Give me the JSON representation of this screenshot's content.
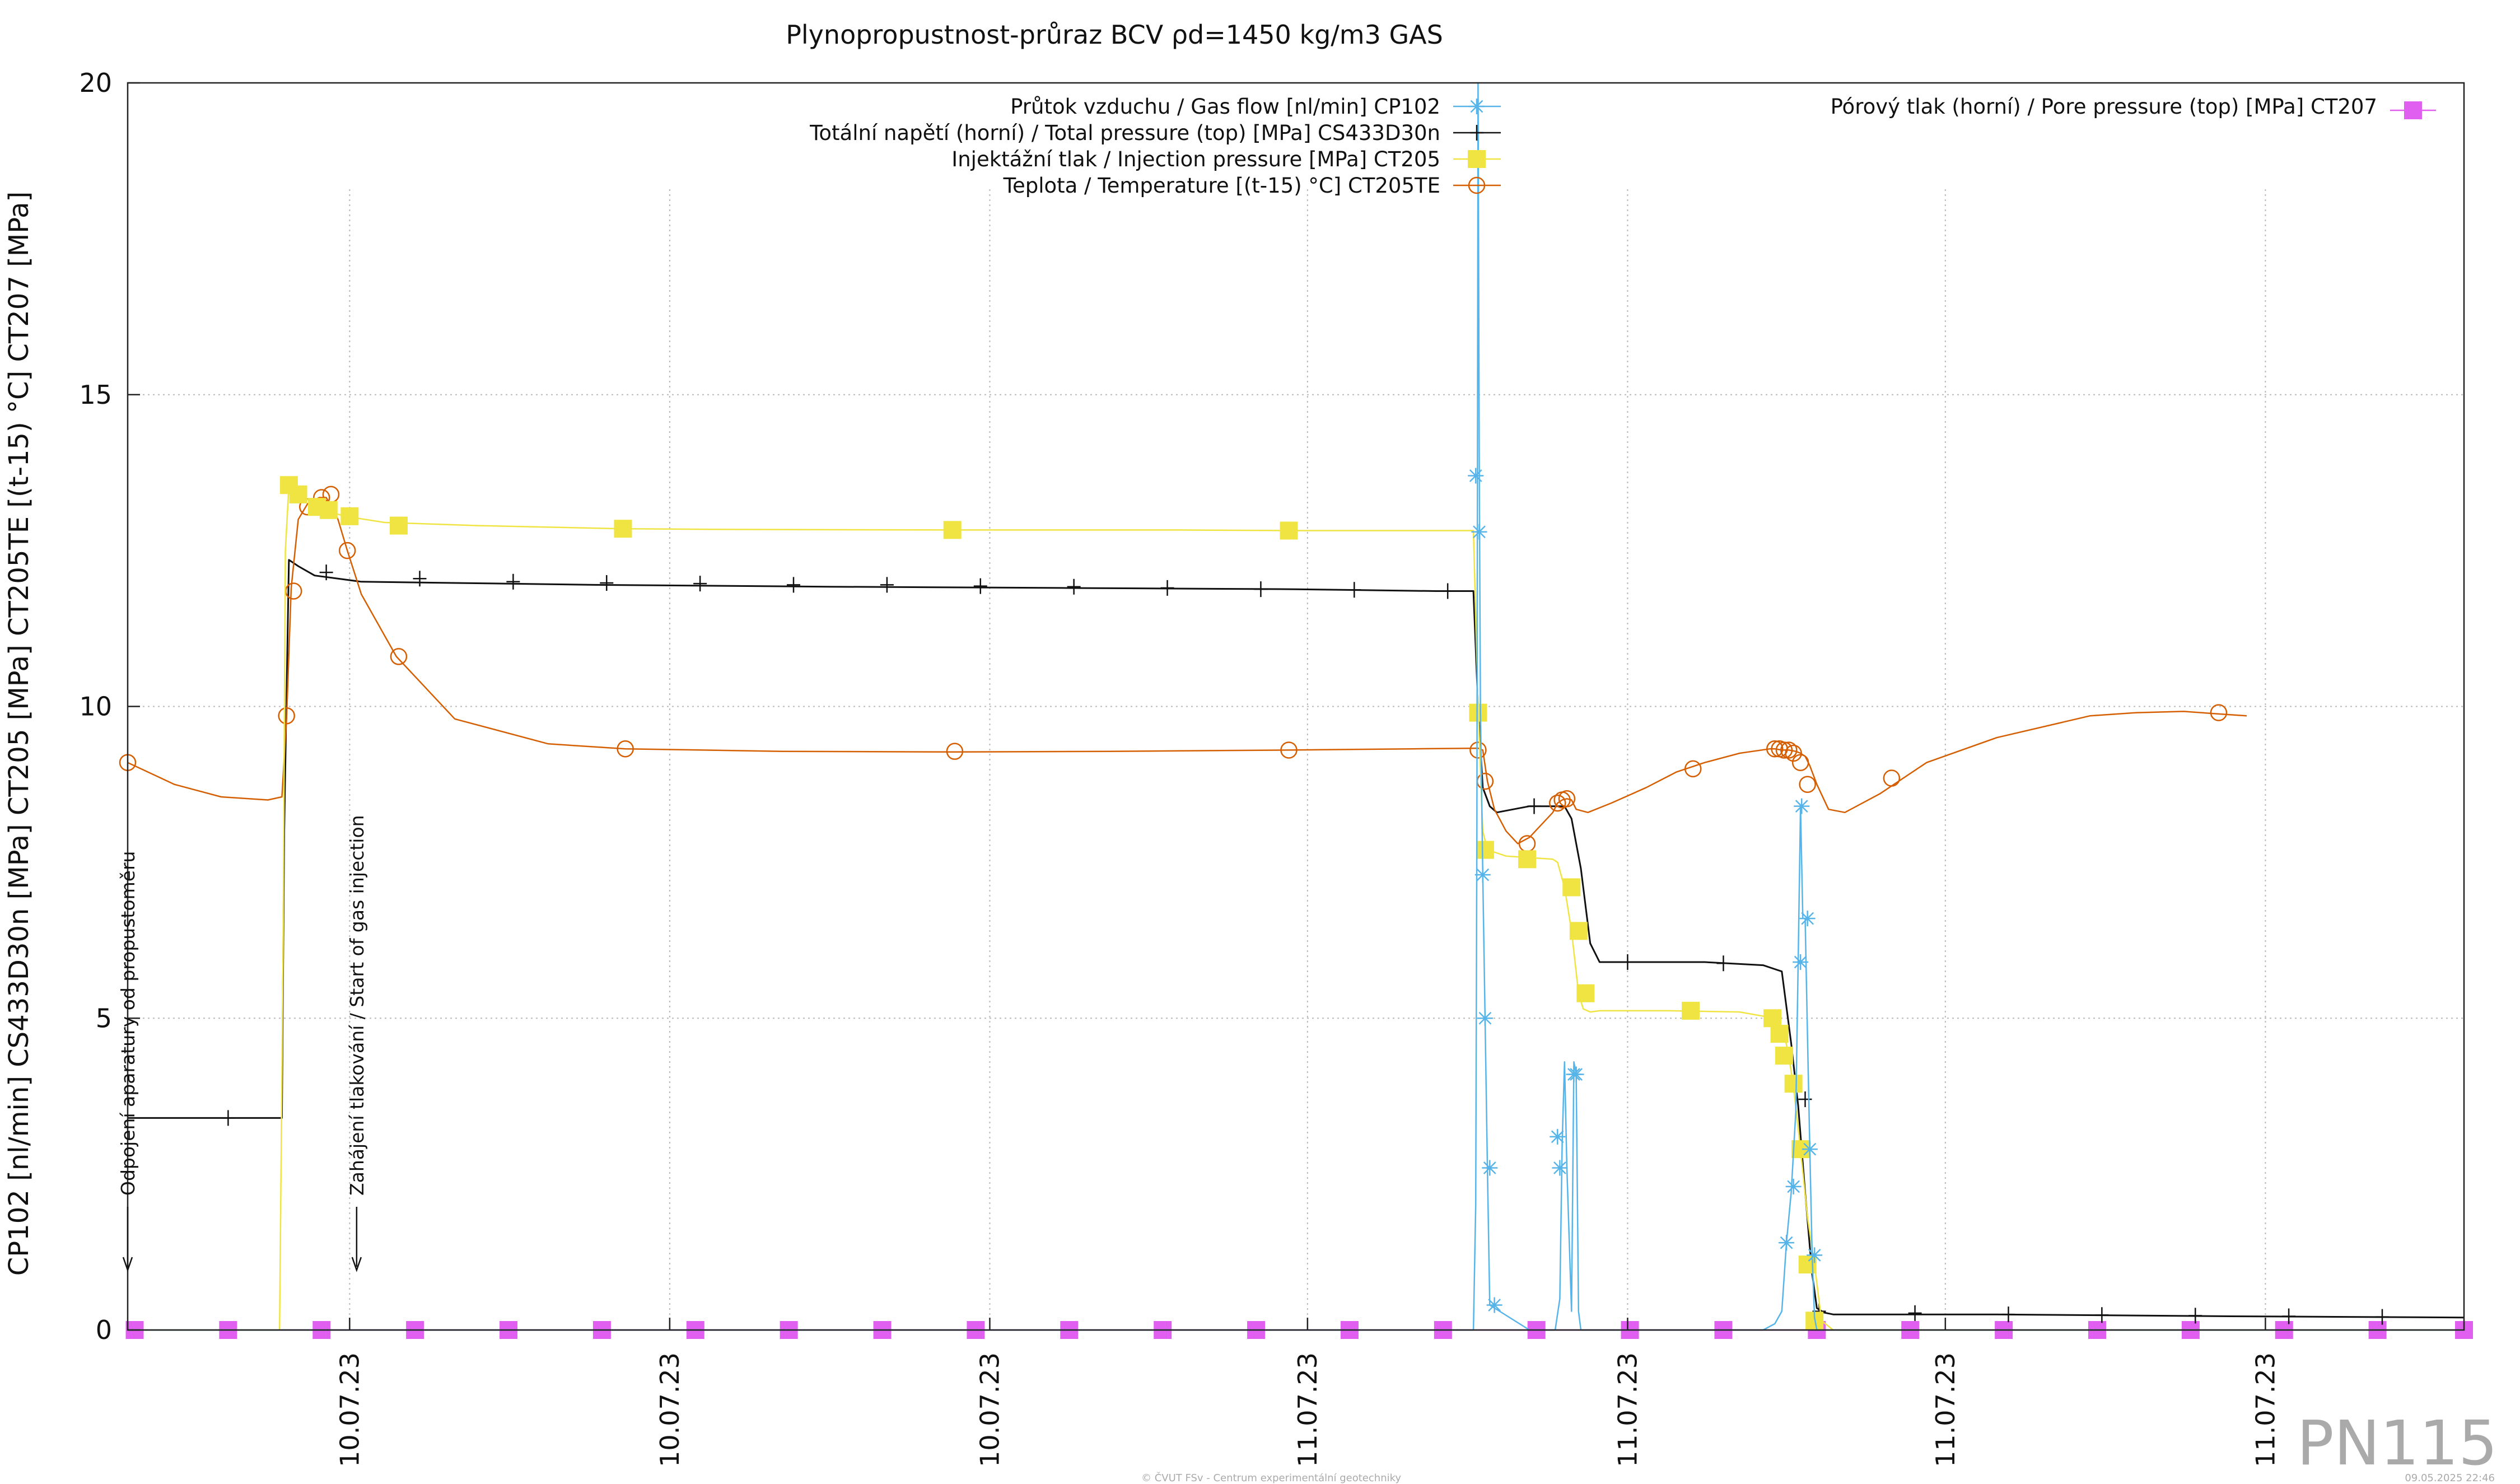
{
  "chart_data": {
    "type": "line",
    "title": "Plynopropustnost-průraz BCV ρd=1450 kg/m3 GAS",
    "ylabel": "CP102 [nl/min] CS433D30n [MPa] CT205 [MPa] CT205TE [(t-15) °C] CT207 [MPa]",
    "ylim": [
      0,
      20
    ],
    "xlim": [
      0,
      100
    ],
    "yticks": [
      "0",
      "5",
      "10",
      "15",
      "20"
    ],
    "xticks": [
      {
        "x": 9.5,
        "label": "10.07.23"
      },
      {
        "x": 23.2,
        "label": "10.07.23"
      },
      {
        "x": 36.9,
        "label": "10.07.23"
      },
      {
        "x": 50.5,
        "label": "11.07.23"
      },
      {
        "x": 64.2,
        "label": "11.07.23"
      },
      {
        "x": 77.8,
        "label": "11.07.23"
      },
      {
        "x": 91.5,
        "label": "11.07.23"
      }
    ],
    "grid": true,
    "series": [
      {
        "name": "Průtok vzduchu / Gas flow [nl/min] CP102",
        "color": "#56b4e9",
        "marker": "star",
        "x": [
          0,
          57.6,
          57.7,
          57.75,
          57.8,
          57.85,
          57.9,
          58.0,
          58.1,
          58.2,
          58.3,
          60.0,
          61.1,
          61.3,
          61.4,
          61.5,
          61.6,
          61.8,
          61.9,
          62.0,
          62.1,
          62.2,
          62.3,
          62.4,
          62.5,
          70.0,
          70.5,
          70.8,
          71.0,
          71.2,
          71.4,
          71.5,
          71.6,
          71.7,
          71.8,
          71.9,
          72.0,
          72.1,
          72.2,
          72.3,
          72.4,
          72.5,
          100
        ],
        "y": [
          0,
          0,
          2.0,
          8.0,
          20.0,
          14.0,
          10.0,
          7.3,
          5.0,
          2.6,
          0.4,
          0,
          0,
          0.5,
          3.0,
          4.3,
          2.6,
          0.3,
          4.3,
          4.1,
          0.3,
          0,
          0,
          0,
          0,
          0,
          0.1,
          0.3,
          1.4,
          2.2,
          3.5,
          5.9,
          8.4,
          6.6,
          6.6,
          4.7,
          2.9,
          1.2,
          0.2,
          0,
          0,
          0,
          0
        ],
        "markers_x": [
          57.7,
          57.85,
          58.0,
          58.1,
          58.3,
          58.5,
          61.2,
          61.3,
          61.9,
          62.0,
          71.0,
          71.3,
          71.6,
          71.65,
          71.9,
          72.0,
          72.2
        ],
        "markers_y": [
          13.7,
          12.8,
          7.3,
          5.0,
          2.6,
          0.4,
          3.1,
          2.6,
          4.1,
          4.1,
          1.4,
          2.3,
          5.9,
          8.4,
          6.6,
          2.9,
          1.2
        ]
      },
      {
        "name": "Totální napětí (horní) / Total pressure (top) [MPa] CS433D30n",
        "color": "#111111",
        "marker": "plus",
        "x": [
          0,
          6.6,
          6.7,
          6.9,
          7.3,
          8.0,
          10.0,
          14.0,
          20.0,
          30.0,
          40.0,
          50.0,
          56.0,
          57.6,
          57.8,
          58.0,
          58.3,
          58.6,
          60.0,
          61.5,
          61.8,
          62.2,
          62.6,
          63.0,
          67.5,
          70.0,
          70.8,
          71.2,
          71.5,
          71.8,
          72.1,
          72.3,
          72.6,
          73.0,
          80.0,
          90.0,
          100
        ],
        "y": [
          3.4,
          3.4,
          8.0,
          12.35,
          12.25,
          12.1,
          12.0,
          11.98,
          11.95,
          11.92,
          11.9,
          11.88,
          11.85,
          11.85,
          10.0,
          8.7,
          8.4,
          8.3,
          8.4,
          8.4,
          8.2,
          7.4,
          6.2,
          5.9,
          5.9,
          5.85,
          5.75,
          4.6,
          3.6,
          2.2,
          0.9,
          0.35,
          0.28,
          0.25,
          0.25,
          0.22,
          0.2
        ],
        "markers_x": [
          4.3,
          8.5,
          12.5,
          16.5,
          20.5,
          24.5,
          28.5,
          32.5,
          36.5,
          40.5,
          44.5,
          48.5,
          52.5,
          56.5,
          60.2,
          64.2,
          68.3,
          71.8,
          72.4,
          76.5,
          80.5,
          84.5,
          88.5,
          92.5,
          96.5
        ],
        "markers_y": [
          3.4,
          12.15,
          12.05,
          12.0,
          11.98,
          11.97,
          11.95,
          11.95,
          11.93,
          11.92,
          11.9,
          11.88,
          11.87,
          11.85,
          8.4,
          5.9,
          5.88,
          3.7,
          0.3,
          0.27,
          0.25,
          0.24,
          0.23,
          0.22,
          0.21
        ]
      },
      {
        "name": "Injektážní tlak / Injection pressure [MPa] CT205",
        "color": "#f0e442",
        "marker": "square",
        "x": [
          0,
          6.5,
          6.65,
          6.75,
          6.9,
          7.2,
          7.8,
          8.4,
          9.3,
          11.0,
          15.0,
          21.2,
          25.0,
          35.3,
          45.0,
          49.7,
          55.0,
          57.6,
          57.8,
          58.0,
          58.2,
          59.0,
          61.0,
          61.2,
          61.5,
          61.8,
          62.1,
          62.3,
          62.6,
          63.0,
          66.0,
          69.0,
          70.5,
          70.9,
          71.1,
          71.3,
          71.6,
          71.9,
          72.2,
          72.5,
          73.0,
          100
        ],
        "y": [
          0,
          0,
          6.0,
          12.5,
          13.55,
          13.4,
          13.3,
          13.15,
          13.05,
          12.95,
          12.9,
          12.85,
          12.84,
          12.83,
          12.83,
          12.82,
          12.82,
          12.82,
          10.0,
          8.0,
          7.7,
          7.6,
          7.55,
          7.5,
          7.1,
          6.4,
          5.4,
          5.15,
          5.1,
          5.12,
          5.12,
          5.1,
          5.0,
          4.75,
          4.4,
          3.9,
          2.9,
          1.8,
          1.05,
          0.15,
          0,
          0
        ],
        "markers_x": [
          6.9,
          7.3,
          8.1,
          8.6,
          9.5,
          11.6,
          21.2,
          35.3,
          49.7,
          57.8,
          58.1,
          59.9,
          61.8,
          62.1,
          62.4,
          66.9,
          70.4,
          70.7,
          70.9,
          71.3,
          71.6,
          71.9,
          72.2
        ],
        "markers_y": [
          13.55,
          13.4,
          13.2,
          13.15,
          13.05,
          12.9,
          12.85,
          12.83,
          12.82,
          9.9,
          7.7,
          7.55,
          7.1,
          6.4,
          5.4,
          5.12,
          5.0,
          4.75,
          4.4,
          3.95,
          2.9,
          1.05,
          0.15
        ]
      },
      {
        "name": "Teplota / Temperature [(t-15) °C] CT205TE",
        "color": "#d55e00",
        "marker": "circle",
        "x": [
          0,
          2.0,
          4.0,
          6.0,
          6.6,
          6.8,
          7.0,
          7.3,
          7.7,
          8.2,
          8.5,
          9.0,
          9.4,
          10.0,
          11.5,
          14.0,
          18.0,
          21.3,
          28.0,
          35.4,
          42.0,
          49.7,
          55.0,
          57.8,
          58.0,
          58.2,
          58.5,
          59.0,
          59.5,
          60.0,
          61.0,
          61.2,
          61.4,
          61.6,
          61.8,
          62.0,
          62.5,
          63.5,
          65.0,
          66.3,
          67.5,
          69.0,
          70.3,
          70.5,
          70.8,
          71.1,
          71.4,
          71.6,
          71.8,
          72.0,
          72.3,
          72.8,
          73.5,
          75.0,
          77.0,
          80.0,
          84.0,
          86.0,
          88.0,
          89.5,
          90.7
        ],
        "y": [
          9.1,
          8.75,
          8.55,
          8.5,
          8.55,
          9.8,
          11.9,
          13.0,
          13.25,
          13.35,
          13.35,
          13.0,
          12.5,
          11.8,
          10.8,
          9.8,
          9.4,
          9.32,
          9.28,
          9.27,
          9.28,
          9.3,
          9.32,
          9.33,
          9.3,
          8.8,
          8.35,
          8.0,
          7.8,
          7.9,
          8.3,
          8.45,
          8.5,
          8.52,
          8.5,
          8.35,
          8.3,
          8.45,
          8.7,
          8.95,
          9.1,
          9.25,
          9.32,
          9.32,
          9.3,
          9.3,
          9.28,
          9.25,
          9.2,
          9.05,
          8.75,
          8.35,
          8.3,
          8.6,
          9.1,
          9.5,
          9.85,
          9.9,
          9.92,
          9.88,
          9.85
        ],
        "markers_x": [
          0,
          6.8,
          7.1,
          7.7,
          8.3,
          8.7,
          9.4,
          11.6,
          21.3,
          35.4,
          49.7,
          57.8,
          58.1,
          59.9,
          61.2,
          61.4,
          61.6,
          67.0,
          70.5,
          70.7,
          70.9,
          71.1,
          71.3,
          71.6,
          71.9,
          75.5,
          89.5
        ],
        "markers_y": [
          9.1,
          9.85,
          11.85,
          13.2,
          13.35,
          13.4,
          12.5,
          10.8,
          9.32,
          9.28,
          9.3,
          9.3,
          8.8,
          7.8,
          8.45,
          8.5,
          8.52,
          9.0,
          9.32,
          9.32,
          9.3,
          9.3,
          9.25,
          9.1,
          8.75,
          8.85,
          9.9
        ]
      },
      {
        "name": "Pórový tlak (horní) / Pore pressure (top) [MPa] CT207",
        "color": "#e15ff0",
        "marker": "square",
        "x": [
          0,
          100
        ],
        "y": [
          0,
          0
        ],
        "markers_x": [
          0.3,
          4.3,
          8.3,
          12.3,
          16.3,
          20.3,
          24.3,
          28.3,
          32.3,
          36.3,
          40.3,
          44.3,
          48.3,
          52.3,
          56.3,
          60.3,
          64.3,
          68.3,
          72.3,
          76.3,
          80.3,
          84.3,
          88.3,
          92.3,
          96.3,
          100.0
        ],
        "markers_y": [
          0,
          0,
          0,
          0,
          0,
          0,
          0,
          0,
          0,
          0,
          0,
          0,
          0,
          0,
          0,
          0,
          0,
          0,
          0,
          0,
          0,
          0,
          0,
          0,
          0,
          0
        ]
      }
    ],
    "annotations": [
      {
        "x": 0,
        "text": "Odpojení aparatury od propustoměru"
      },
      {
        "x": 9.8,
        "text": "Zahájení tlakování / Start of gas injection"
      }
    ]
  },
  "badge": "PN115",
  "footer": {
    "center": "© ČVUT FSv - Centrum experimentální geotechniky",
    "right": "09.05.2025 22:46"
  }
}
